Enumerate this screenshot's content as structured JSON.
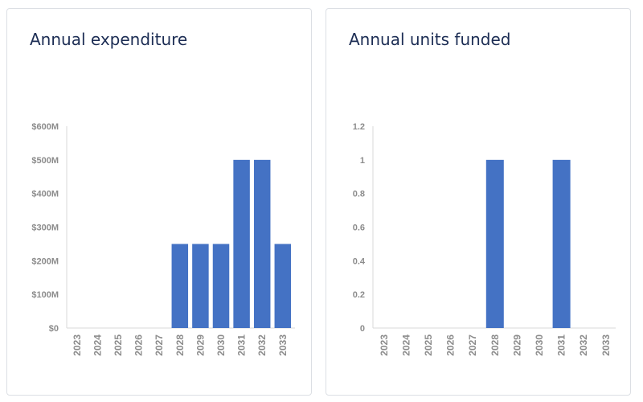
{
  "chart_data": [
    {
      "type": "bar",
      "title": "Annual expenditure",
      "xlabel": "",
      "ylabel": "",
      "categories": [
        "2023",
        "2024",
        "2025",
        "2026",
        "2027",
        "2028",
        "2029",
        "2030",
        "2031",
        "2032",
        "2033"
      ],
      "values": [
        0,
        0,
        0,
        0,
        0,
        250,
        250,
        250,
        500,
        500,
        250
      ],
      "unit": "$M",
      "ylim": [
        0,
        600
      ],
      "y_ticks": [
        0,
        100,
        200,
        300,
        400,
        500,
        600
      ],
      "y_tick_labels": [
        "$0",
        "$100M",
        "$200M",
        "$300M",
        "$400M",
        "$500M",
        "$600M"
      ],
      "grid": false,
      "bar_color": "#4472c4"
    },
    {
      "type": "bar",
      "title": "Annual units funded",
      "xlabel": "",
      "ylabel": "",
      "categories": [
        "2023",
        "2024",
        "2025",
        "2026",
        "2027",
        "2028",
        "2029",
        "2030",
        "2031",
        "2032",
        "2033"
      ],
      "values": [
        0,
        0,
        0,
        0,
        0,
        1,
        0,
        0,
        1,
        0,
        0
      ],
      "ylim": [
        0,
        1.2
      ],
      "y_ticks": [
        0,
        0.2,
        0.4,
        0.6,
        0.8,
        1,
        1.2
      ],
      "y_tick_labels": [
        "0",
        "0.2",
        "0.4",
        "0.6",
        "0.8",
        "1",
        "1.2"
      ],
      "grid": false,
      "bar_color": "#4472c4"
    }
  ]
}
